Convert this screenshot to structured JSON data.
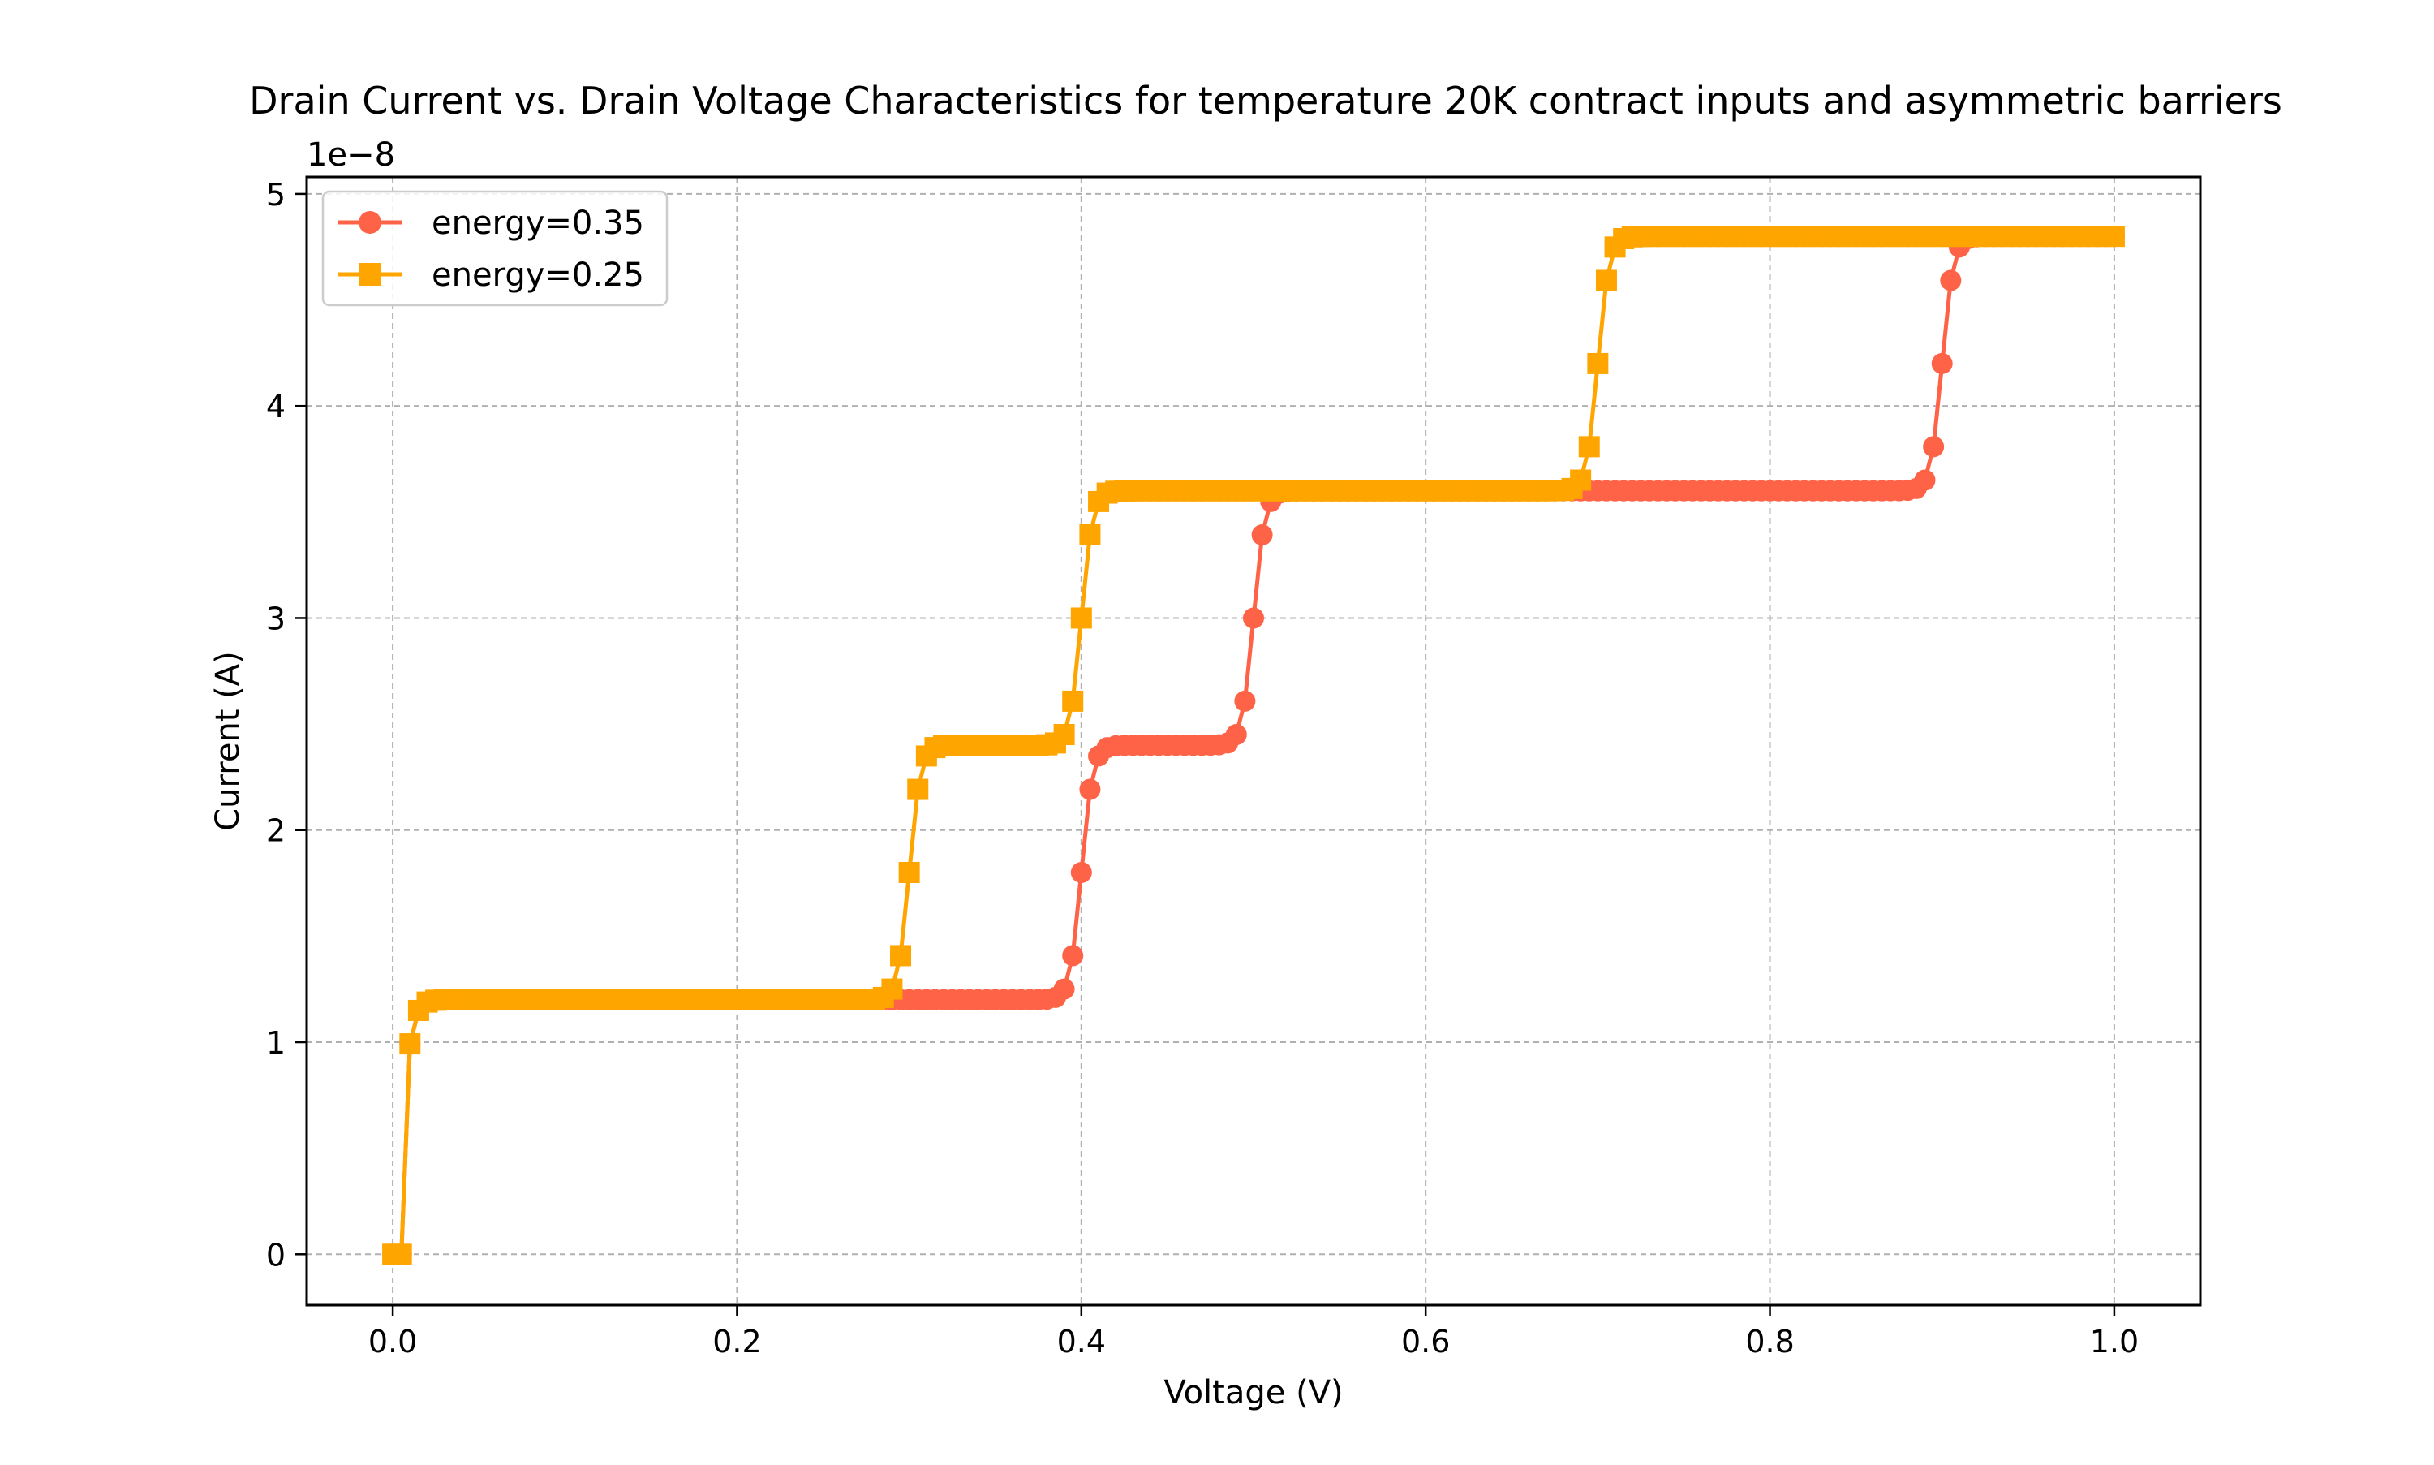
{
  "chart_data": {
    "type": "line",
    "title": "Drain Current vs. Drain Voltage Characteristics for temperature 20K contract inputs and asymmetric barriers",
    "xlabel": "Voltage (V)",
    "ylabel": "Current (A)",
    "y_scale_label": "1e−8",
    "xlim": [
      -0.05,
      1.05
    ],
    "ylim": [
      -0.24,
      5.08
    ],
    "x_ticks": [
      0.0,
      0.2,
      0.4,
      0.6,
      0.8,
      1.0
    ],
    "x_tick_labels": [
      "0.0",
      "0.2",
      "0.4",
      "0.6",
      "0.8",
      "1.0"
    ],
    "y_ticks": [
      0,
      1,
      2,
      3,
      4,
      5
    ],
    "y_tick_labels": [
      "0",
      "1",
      "2",
      "3",
      "4",
      "5"
    ],
    "grid": true,
    "legend_position": "top-left",
    "series": [
      {
        "name": "energy=0.35",
        "color": "#ff6347",
        "marker": "circle",
        "steps": [
          {
            "center": 0.005,
            "height": 1.2,
            "width": 0.0032
          },
          {
            "center": 0.4,
            "height": 1.2,
            "width": 0.0032
          },
          {
            "center": 0.5,
            "height": 1.2,
            "width": 0.0032
          },
          {
            "center": 0.9,
            "height": 1.2,
            "width": 0.0032
          }
        ],
        "baseline": 0.0,
        "drift": 0.0
      },
      {
        "name": "energy=0.25",
        "color": "#ffa500",
        "marker": "square",
        "steps": [
          {
            "center": 0.005,
            "height": 1.2,
            "width": 0.0032
          },
          {
            "center": 0.3,
            "height": 1.2,
            "width": 0.0032
          },
          {
            "center": 0.4,
            "height": 1.2,
            "width": 0.0032
          },
          {
            "center": 0.7,
            "height": 1.2,
            "width": 0.0032
          }
        ],
        "baseline": 0.0,
        "drift": 0.0
      }
    ],
    "x_start": 0.0,
    "x_end": 1.0,
    "point_count": 201
  }
}
